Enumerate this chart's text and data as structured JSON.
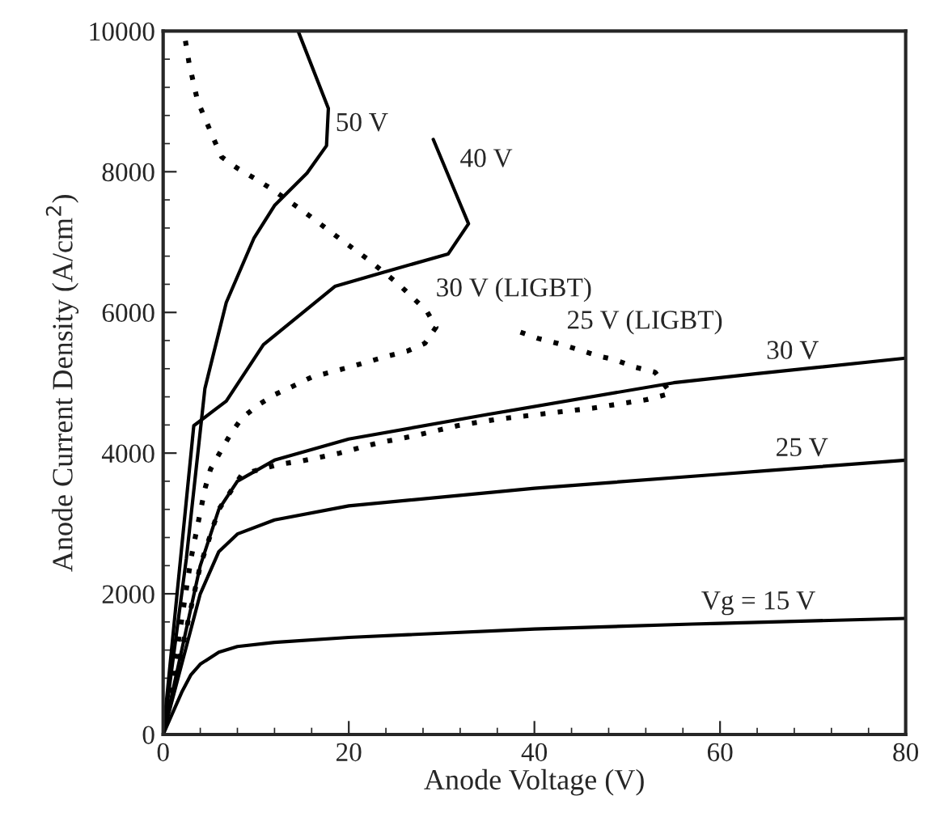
{
  "chart_data": {
    "type": "line",
    "xlabel": "Anode Voltage (V)",
    "ylabel": "Anode Current Density (A/cm$^{2}$)",
    "xlim": [
      0,
      80
    ],
    "ylim": [
      0,
      10000
    ],
    "xticks": [
      0,
      20,
      40,
      60,
      80
    ],
    "yticks": [
      0,
      2000,
      4000,
      6000,
      8000,
      10000
    ],
    "grid": false,
    "marker": "none",
    "series": [
      {
        "color": "#000000",
        "line_style": "solid",
        "x": [
          0,
          1,
          2,
          3,
          4,
          6,
          8,
          12,
          20,
          40,
          57,
          60,
          80
        ],
        "values": [
          0,
          300,
          600,
          850,
          1000,
          1170,
          1250,
          1310,
          1380,
          1500,
          1570,
          1580,
          1650
        ]
      },
      {
        "color": "#000000",
        "line_style": "solid",
        "x": [
          0,
          2,
          4,
          6,
          8,
          12,
          20,
          40,
          60,
          65,
          80
        ],
        "values": [
          0,
          1000,
          2000,
          2600,
          2850,
          3050,
          3250,
          3500,
          3700,
          3750,
          3900
        ]
      },
      {
        "color": "#000000",
        "line_style": "solid",
        "x": [
          0,
          2,
          4,
          6,
          8,
          12,
          20,
          35,
          55,
          64,
          80
        ],
        "values": [
          0,
          1200,
          2400,
          3200,
          3600,
          3900,
          4200,
          4550,
          5000,
          5130,
          5350
        ]
      },
      {
        "color": "#000000",
        "line_style": "solid",
        "x": [
          0,
          1.5,
          3.3,
          6.8,
          10.8,
          18.5,
          23.7,
          30.7,
          32.9,
          31.0,
          29.1
        ],
        "values": [
          0,
          2000,
          4390,
          4740,
          5540,
          6370,
          6570,
          6830,
          7260,
          7860,
          8460
        ]
      },
      {
        "color": "#000000",
        "line_style": "solid",
        "x": [
          0,
          1.5,
          2.5,
          4.5,
          6.8,
          9.8,
          12.0,
          15.5,
          17.6,
          17.8,
          14.6
        ],
        "values": [
          0,
          1500,
          2500,
          4920,
          6140,
          7060,
          7520,
          7980,
          8370,
          8900,
          9980
        ]
      },
      {
        "color": "#000000",
        "line_style": "dotted",
        "x": [
          2.4,
          2.8,
          3.7,
          4.5,
          5.4,
          6.3,
          8.0,
          9.8,
          11.5,
          15.0,
          18.5,
          22.0,
          25.3,
          28.4,
          29.4,
          28.2,
          26.3,
          24.2,
          20.0,
          16.0,
          13.8,
          12.0,
          10.3,
          8.5,
          7.3,
          6.3,
          5.1,
          4.5,
          3.0,
          1.5,
          0
        ],
        "values": [
          9860,
          9540,
          9010,
          8760,
          8480,
          8210,
          8050,
          7910,
          7770,
          7450,
          7100,
          6760,
          6410,
          6020,
          5790,
          5560,
          5450,
          5380,
          5220,
          5080,
          4940,
          4830,
          4690,
          4500,
          4280,
          4050,
          3770,
          3490,
          2500,
          1200,
          0
        ]
      },
      {
        "color": "#000000",
        "line_style": "dotted",
        "x": [
          38.5,
          40.4,
          42.5,
          44.8,
          46.9,
          48.6,
          50.9,
          53.0,
          54.7,
          52.1,
          46.3,
          40.4,
          35.9,
          31.7,
          27.2,
          23.0,
          19.0,
          15.0,
          12.5,
          8.5,
          6,
          4,
          2,
          0
        ],
        "values": [
          5720,
          5630,
          5560,
          5470,
          5380,
          5330,
          5220,
          5150,
          4850,
          4760,
          4640,
          4550,
          4480,
          4390,
          4250,
          4140,
          4000,
          3890,
          3840,
          3700,
          3200,
          2400,
          1200,
          0
        ]
      }
    ],
    "annotations": [
      {
        "text": "50 V",
        "x": 17.6,
        "y": 8370
      },
      {
        "text": "40 V",
        "x": 31.0,
        "y": 7860
      },
      {
        "text": "30 V (LIGBT)",
        "x": 28.4,
        "y": 6020
      },
      {
        "text": "25 V (LIGBT)",
        "x": 42.5,
        "y": 5560
      },
      {
        "text": "30 V",
        "x": 64,
        "y": 5130
      },
      {
        "text": "25 V",
        "x": 65,
        "y": 3750
      },
      {
        "text": "Vg = 15 V",
        "x": 57,
        "y": 1570
      }
    ]
  }
}
